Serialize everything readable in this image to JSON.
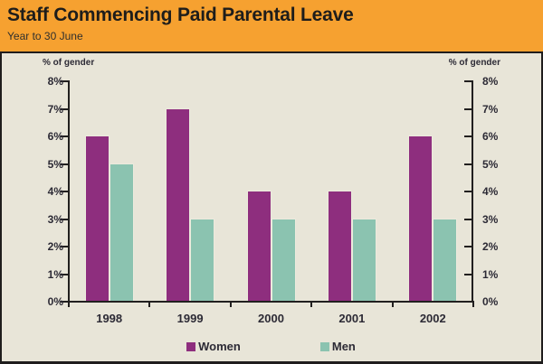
{
  "header": {
    "title": "Staff Commencing Paid Parental Leave",
    "subtitle": "Year to 30 June"
  },
  "chart": {
    "left_axis_caption": "% of gender",
    "right_axis_caption": "% of gender"
  },
  "chart_data": {
    "type": "bar",
    "title": "Staff Commencing Paid Parental Leave",
    "subtitle": "Year to 30 June",
    "categories": [
      "1998",
      "1999",
      "2000",
      "2001",
      "2002"
    ],
    "series": [
      {
        "name": "Women",
        "color": "#8e2e7e",
        "values": [
          6,
          7,
          4,
          4,
          6
        ]
      },
      {
        "name": "Men",
        "color": "#8bc3b0",
        "values": [
          5,
          3,
          3,
          3,
          3
        ]
      }
    ],
    "xlabel": "",
    "ylabel": "% of gender",
    "ylim": [
      0,
      8
    ],
    "y_tick_step": 1,
    "y_ticks": [
      "0%",
      "1%",
      "2%",
      "3%",
      "4%",
      "5%",
      "6%",
      "7%",
      "8%"
    ],
    "grid": false,
    "dual_y_axis": true,
    "legend_position": "bottom"
  },
  "colors": {
    "header_bg": "#f6a130",
    "panel_bg": "#e8e5d8",
    "border": "#1f1d1d",
    "axis": "#211f1f",
    "label_text": "#2c2a35",
    "title_text": "#1e1d1b",
    "women": "#8e2e7e",
    "men": "#8bc3b0"
  }
}
